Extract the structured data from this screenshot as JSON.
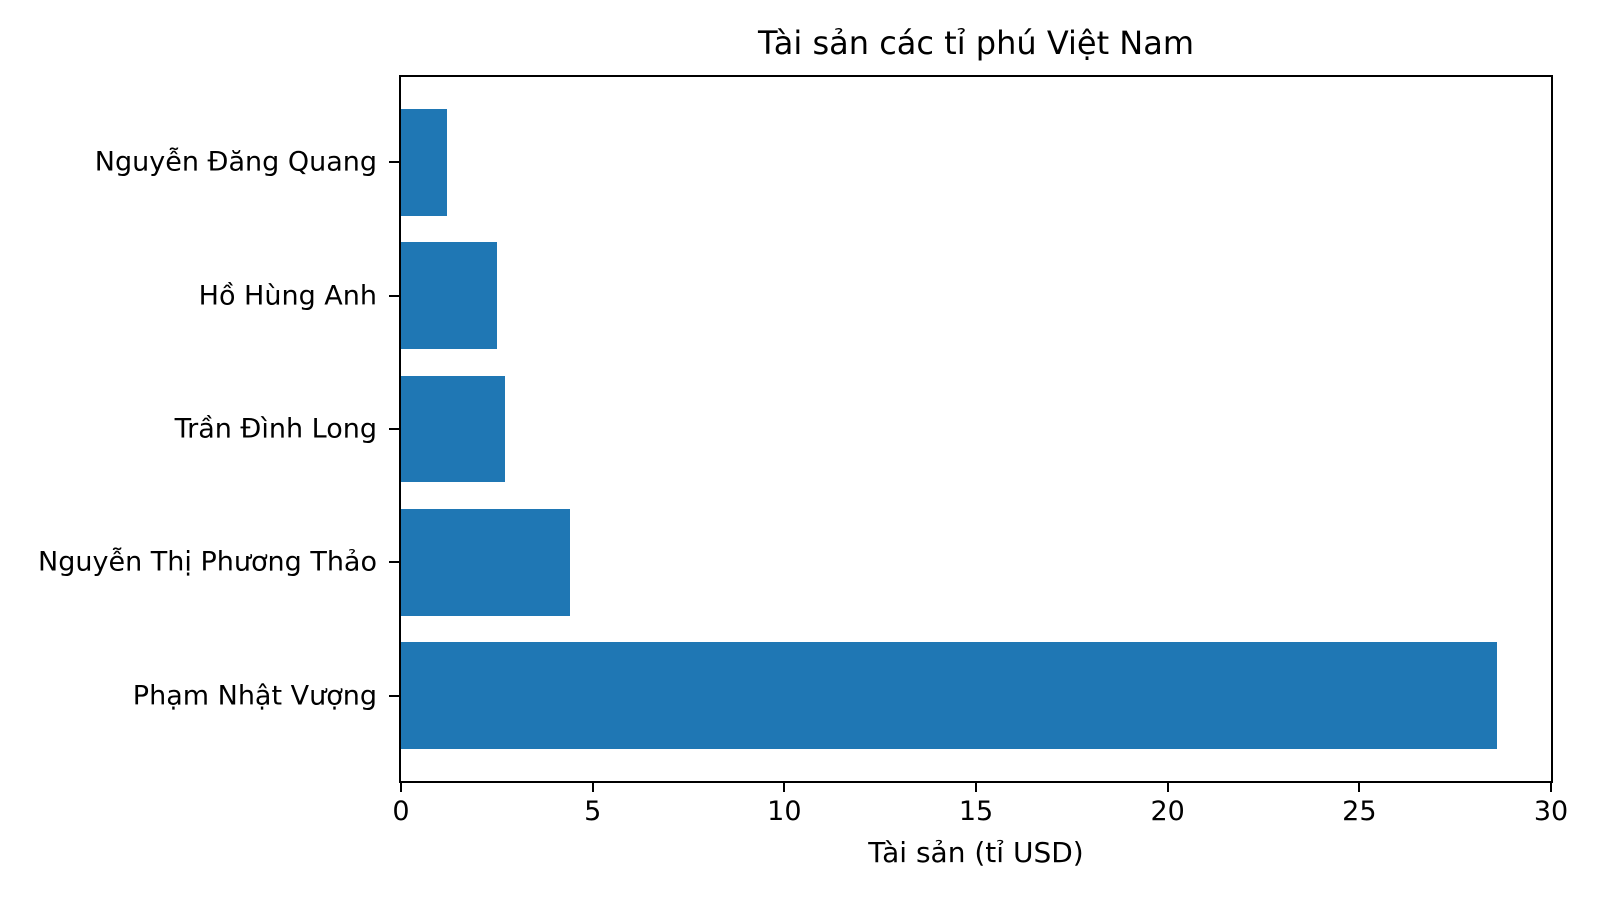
{
  "chart_data": {
    "type": "bar",
    "orientation": "horizontal",
    "title": "Tài sản các tỉ phú Việt Nam",
    "xlabel": "Tài sản (tỉ USD)",
    "ylabel": "",
    "categories": [
      "Nguyễn Đăng Quang",
      "Hồ Hùng Anh",
      "Trần Đình Long",
      "Nguyễn Thị Phương Thảo",
      "Phạm Nhật Vượng"
    ],
    "values": [
      1.2,
      2.5,
      2.7,
      4.4,
      28.6
    ],
    "xlim": [
      0,
      30
    ],
    "xticks": [
      0,
      5,
      10,
      15,
      20,
      25,
      30
    ],
    "grid": false,
    "legend": null,
    "colors": {
      "bar": "#1f77b4",
      "text": "#000000",
      "spine": "#000000",
      "background": "#ffffff"
    }
  }
}
